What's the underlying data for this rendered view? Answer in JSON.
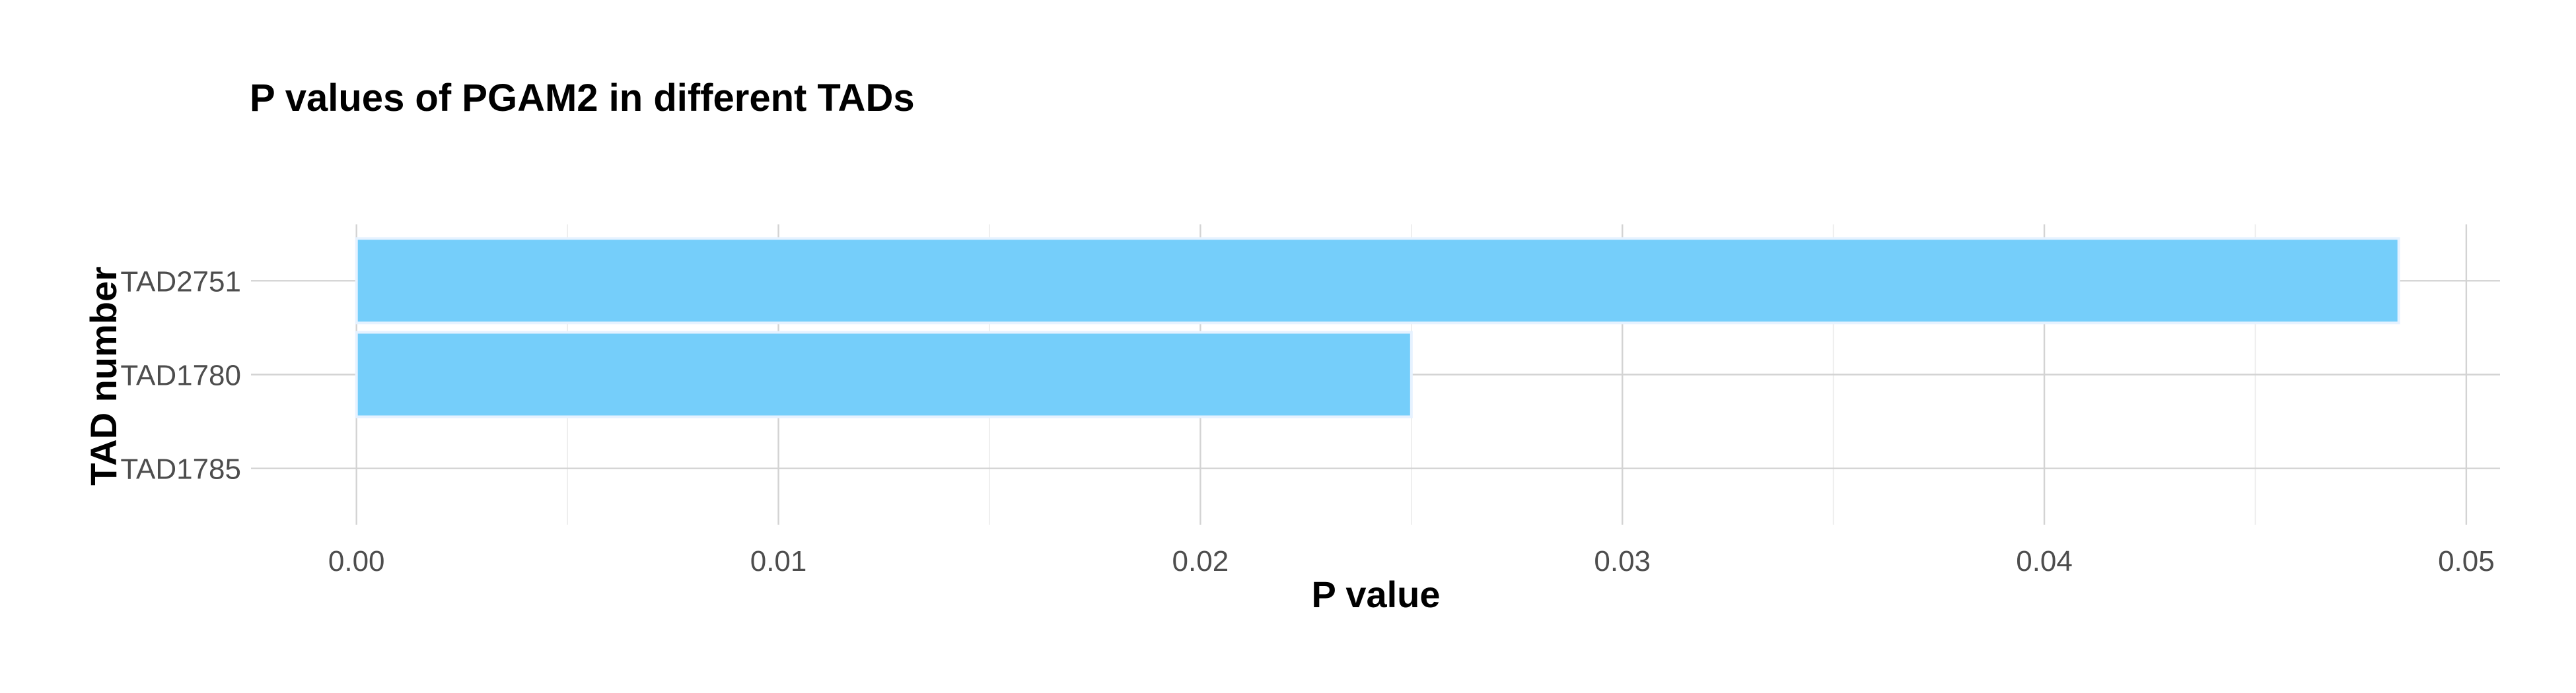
{
  "chart_data": {
    "type": "bar",
    "orientation": "horizontal",
    "title": "P values of PGAM2 in different TADs",
    "xlabel": "P value",
    "ylabel": "TAD number",
    "categories": [
      "TAD2751",
      "TAD1780",
      "TAD1785"
    ],
    "values": [
      0.0484,
      0.025,
      0
    ],
    "xlim": [
      -0.0025,
      0.0508
    ],
    "xticks": [
      0.0,
      0.01,
      0.02,
      0.03,
      0.04,
      0.05
    ],
    "xtick_labels": [
      "0.00",
      "0.01",
      "0.02",
      "0.03",
      "0.04",
      "0.05"
    ],
    "grid": true,
    "legend": "none",
    "bar_color": "#75CEFA",
    "bar_outline_color": "#E6F2FF"
  }
}
